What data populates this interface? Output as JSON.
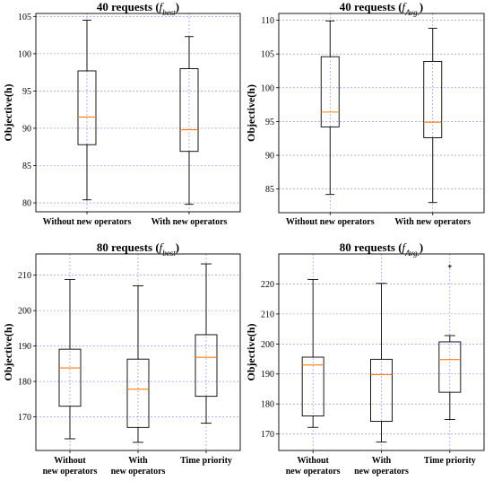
{
  "chart_data": [
    {
      "type": "box",
      "title": "40 requests (",
      "title_italic": "f",
      "title_sub": "best",
      "title_close": ")",
      "ylabel": "Objective(h)",
      "ylim": [
        78.8,
        105.4
      ],
      "yticks": [
        "80",
        "85",
        "90",
        "95",
        "100",
        "105"
      ],
      "grid": true,
      "categories": [
        [
          "Without new operators"
        ],
        [
          "With new operators"
        ]
      ],
      "boxes": [
        {
          "min": 80.4,
          "q1": 87.8,
          "median": 91.5,
          "q3": 97.7,
          "max": 104.5,
          "outliers": []
        },
        {
          "min": 79.8,
          "q1": 86.9,
          "median": 89.8,
          "q3": 98.0,
          "max": 102.3,
          "outliers": []
        }
      ]
    },
    {
      "type": "box",
      "title": "40 requests (",
      "title_italic": "f",
      "title_sub": "Avg.",
      "title_close": ")",
      "ylabel": "Objective(h)",
      "ylim": [
        81.5,
        111.0
      ],
      "yticks": [
        "85",
        "90",
        "95",
        "100",
        "105",
        "110"
      ],
      "grid": true,
      "categories": [
        [
          "Without new operators"
        ],
        [
          "With new operators"
        ]
      ],
      "boxes": [
        {
          "min": 84.2,
          "q1": 94.2,
          "median": 96.4,
          "q3": 104.6,
          "max": 109.9,
          "outliers": []
        },
        {
          "min": 83.0,
          "q1": 92.6,
          "median": 94.9,
          "q3": 103.9,
          "max": 108.8,
          "outliers": []
        }
      ]
    },
    {
      "type": "box",
      "title": "80 requests (",
      "title_italic": "f",
      "title_sub": "best",
      "title_close": ")",
      "ylabel": "Objective(h)",
      "ylim": [
        160.5,
        216.0
      ],
      "yticks": [
        "170",
        "180",
        "190",
        "200",
        "210"
      ],
      "grid": true,
      "categories": [
        [
          "Without",
          "new operators"
        ],
        [
          "With",
          "new operators"
        ],
        [
          "Time priority"
        ]
      ],
      "boxes": [
        {
          "min": 163.8,
          "q1": 173.0,
          "median": 183.8,
          "q3": 189.1,
          "max": 208.8,
          "outliers": []
        },
        {
          "min": 162.8,
          "q1": 167.0,
          "median": 177.8,
          "q3": 186.3,
          "max": 207.0,
          "outliers": []
        },
        {
          "min": 168.2,
          "q1": 175.8,
          "median": 186.8,
          "q3": 193.2,
          "max": 213.2,
          "outliers": []
        }
      ]
    },
    {
      "type": "box",
      "title": "80 requests (",
      "title_italic": "f",
      "title_sub": "Avg.",
      "title_close": ")",
      "ylabel": "Objective(h)",
      "ylim": [
        164.5,
        230.0
      ],
      "yticks": [
        "170",
        "180",
        "190",
        "200",
        "210",
        "220"
      ],
      "grid": true,
      "categories": [
        [
          "Without",
          "new operators"
        ],
        [
          "With",
          "new operators"
        ],
        [
          "Time priority"
        ]
      ],
      "boxes": [
        {
          "min": 172.2,
          "q1": 176.0,
          "median": 193.0,
          "q3": 195.6,
          "max": 221.5,
          "outliers": []
        },
        {
          "min": 167.3,
          "q1": 174.2,
          "median": 189.8,
          "q3": 194.9,
          "max": 220.2,
          "outliers": []
        },
        {
          "min": 174.8,
          "q1": 183.9,
          "median": 194.8,
          "q3": 200.7,
          "max": 202.8,
          "outliers": [
            225.9
          ]
        }
      ]
    }
  ],
  "colors": {
    "median": "#ff7f0e",
    "box": "#000000",
    "grid": "#8080ff",
    "axes": "#000000",
    "flier": "#000000"
  }
}
